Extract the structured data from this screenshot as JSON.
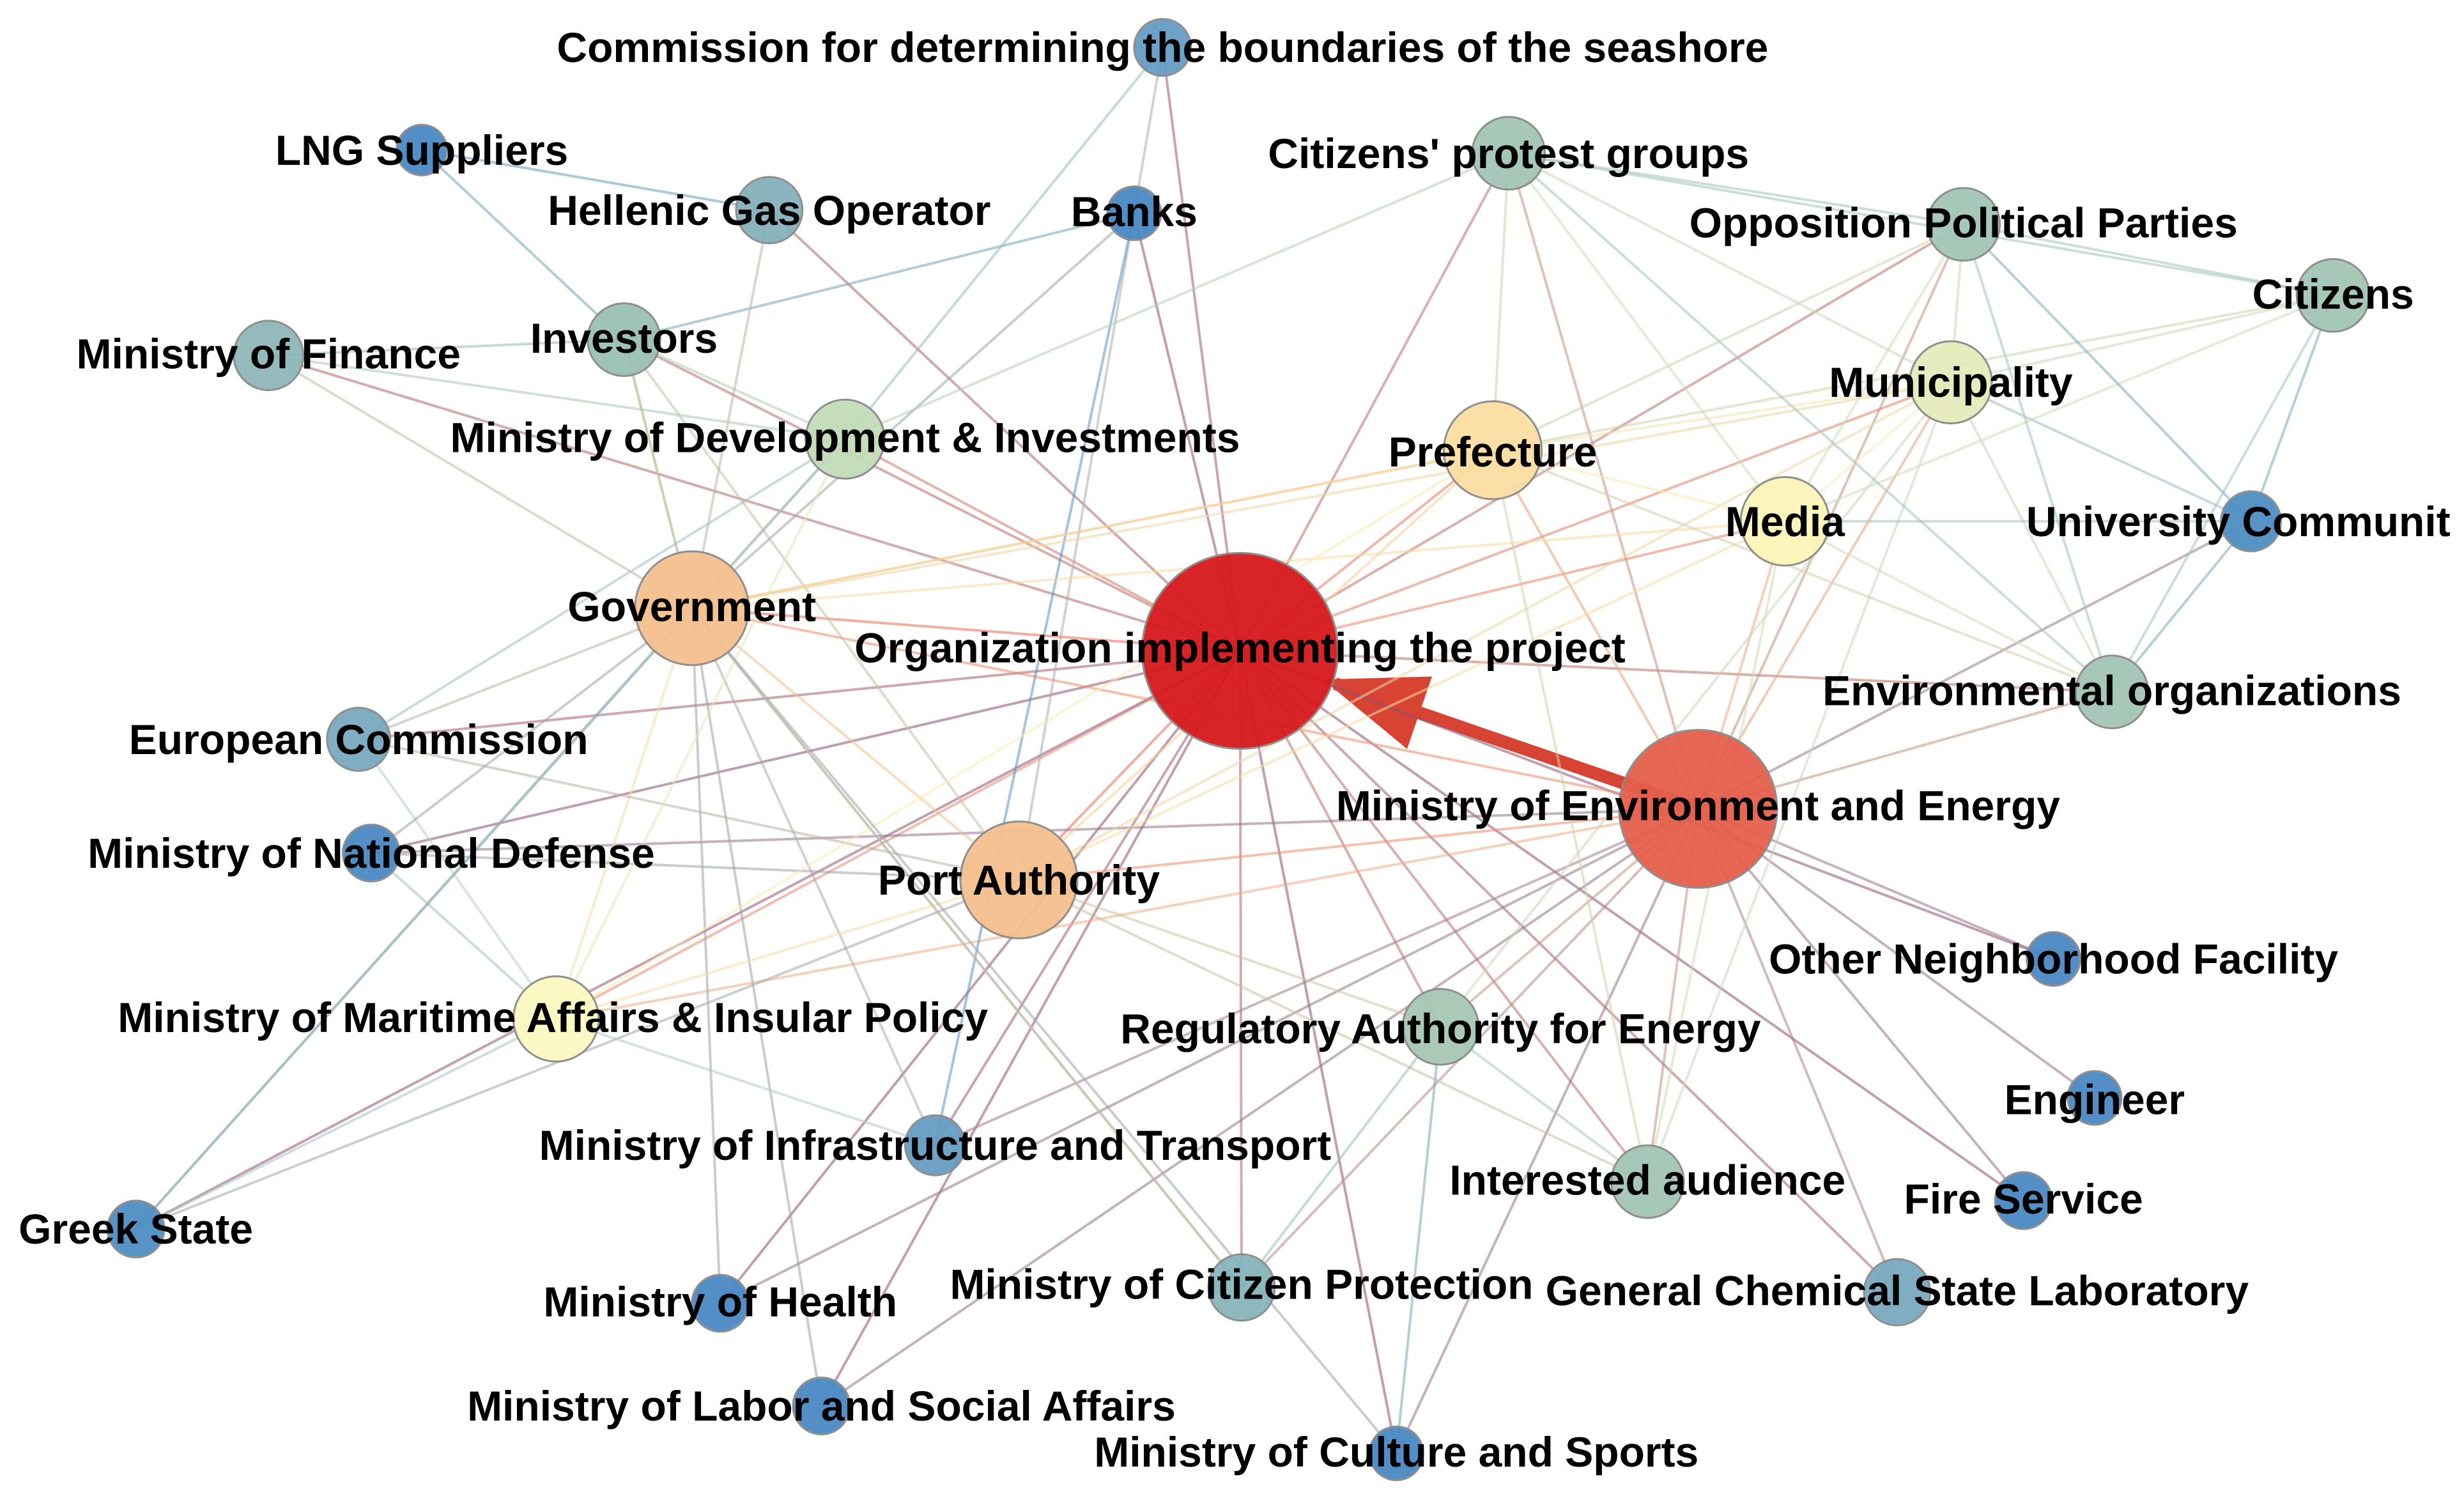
{
  "nodes": [
    {
      "id": "orgimpl",
      "label": "Organization implementing the project",
      "color": "#d7191c"
    },
    {
      "id": "minenv",
      "label": "Ministry of Environment and Energy",
      "color": "#e45f4b"
    },
    {
      "id": "govt",
      "label": "Government",
      "color": "#f5c08e"
    },
    {
      "id": "port",
      "label": "Port Authority",
      "color": "#f5c08e"
    },
    {
      "id": "prefect",
      "label": "Prefecture",
      "color": "#fbdea2"
    },
    {
      "id": "media",
      "label": "Media",
      "color": "#fbf5b8"
    },
    {
      "id": "muni",
      "label": "Municipality",
      "color": "#e6ebbb"
    },
    {
      "id": "marit",
      "label": "Ministry of Maritime Affairs & Insular Policy",
      "color": "#fbf8c0"
    },
    {
      "id": "mindev",
      "label": "Ministry of Development & Investments",
      "color": "#c2dcb8"
    },
    {
      "id": "rae",
      "label": "Regulatory Authority for Energy",
      "color": "#a6c8b4"
    },
    {
      "id": "protest",
      "label": "Citizens' protest groups",
      "color": "#a3c6b6"
    },
    {
      "id": "opposition",
      "label": "Opposition Political Parties",
      "color": "#a3c6b6"
    },
    {
      "id": "citizens",
      "label": "Citizens",
      "color": "#a3c6b6"
    },
    {
      "id": "envorg",
      "label": "Environmental organizations",
      "color": "#a3c6b6"
    },
    {
      "id": "interested",
      "label": "Interested audience",
      "color": "#a3c6b6"
    },
    {
      "id": "investors",
      "label": "Investors",
      "color": "#9bc0b4"
    },
    {
      "id": "minfin",
      "label": "Ministry of Finance",
      "color": "#8fb7b8"
    },
    {
      "id": "hgo",
      "label": "Hellenic Gas Operator",
      "color": "#86b0bb"
    },
    {
      "id": "eucomm",
      "label": "European Commission",
      "color": "#7aa9bf"
    },
    {
      "id": "mincit",
      "label": "Ministry of Citizen Protection",
      "color": "#86b5bb"
    },
    {
      "id": "gcsl",
      "label": "General Chemical State Laboratory",
      "color": "#7aa9bf"
    },
    {
      "id": "seashore",
      "label": "Commission for determining the boundaries of the seashore",
      "color": "#669cc3"
    },
    {
      "id": "lng",
      "label": "LNG Suppliers",
      "color": "#4a8ac4"
    },
    {
      "id": "banks",
      "label": "Banks",
      "color": "#4a8ac4"
    },
    {
      "id": "univ",
      "label": "University Communit",
      "color": "#4f8fc4"
    },
    {
      "id": "mindef",
      "label": "Ministry of National Defense",
      "color": "#4a8ac4"
    },
    {
      "id": "mininfra",
      "label": "Ministry of Infrastructure and Transport",
      "color": "#669cc3"
    },
    {
      "id": "greek",
      "label": "Greek State",
      "color": "#4f8fc4"
    },
    {
      "id": "minhealth",
      "label": "Ministry of Health",
      "color": "#4a8ac4"
    },
    {
      "id": "minlabor",
      "label": "Ministry of Labor and Social Affairs",
      "color": "#4a8ac4"
    },
    {
      "id": "minculture",
      "label": "Ministry of Culture and Sports",
      "color": "#4a8ac4"
    },
    {
      "id": "otherfac",
      "label": "Other Neighborhood Facility",
      "color": "#4a8ac4"
    },
    {
      "id": "engineer",
      "label": "Engineer",
      "color": "#4a8ac4"
    },
    {
      "id": "fire",
      "label": "Fire Service",
      "color": "#4a8ac4"
    }
  ],
  "edges": [
    {
      "from": "minenv",
      "to": "orgimpl",
      "weight": 5,
      "directed": true
    },
    [
      "orgimpl",
      "seashore"
    ],
    [
      "orgimpl",
      "hgo"
    ],
    [
      "orgimpl",
      "banks"
    ],
    [
      "orgimpl",
      "investors"
    ],
    [
      "orgimpl",
      "minfin"
    ],
    [
      "orgimpl",
      "mindev"
    ],
    [
      "orgimpl",
      "govt"
    ],
    [
      "orgimpl",
      "eucomm"
    ],
    [
      "orgimpl",
      "mindef"
    ],
    [
      "orgimpl",
      "marit"
    ],
    [
      "orgimpl",
      "port"
    ],
    [
      "orgimpl",
      "greek"
    ],
    [
      "orgimpl",
      "mininfra"
    ],
    [
      "orgimpl",
      "minhealth"
    ],
    [
      "orgimpl",
      "minlabor"
    ],
    [
      "orgimpl",
      "mincit"
    ],
    [
      "orgimpl",
      "minculture"
    ],
    [
      "orgimpl",
      "rae"
    ],
    [
      "orgimpl",
      "interested"
    ],
    [
      "orgimpl",
      "prefect"
    ],
    [
      "orgimpl",
      "muni"
    ],
    [
      "orgimpl",
      "media"
    ],
    [
      "orgimpl",
      "opposition"
    ],
    [
      "orgimpl",
      "protest"
    ],
    [
      "orgimpl",
      "envorg"
    ],
    [
      "orgimpl",
      "gcsl"
    ],
    [
      "orgimpl",
      "fire"
    ],
    [
      "orgimpl",
      "otherfac"
    ],
    [
      "minenv",
      "govt"
    ],
    [
      "minenv",
      "port"
    ],
    [
      "minenv",
      "prefect"
    ],
    [
      "minenv",
      "media"
    ],
    [
      "minenv",
      "muni"
    ],
    [
      "minenv",
      "envorg"
    ],
    [
      "minenv",
      "protest"
    ],
    [
      "minenv",
      "rae"
    ],
    [
      "minenv",
      "interested"
    ],
    [
      "minenv",
      "gcsl"
    ],
    [
      "minenv",
      "fire"
    ],
    [
      "minenv",
      "engineer"
    ],
    [
      "minenv",
      "otherfac"
    ],
    [
      "minenv",
      "minculture"
    ],
    [
      "minenv",
      "mincit"
    ],
    [
      "minenv",
      "minlabor"
    ],
    [
      "minenv",
      "minhealth"
    ],
    [
      "minenv",
      "mininfra"
    ],
    [
      "minenv",
      "marit"
    ],
    [
      "minenv",
      "mindef"
    ],
    [
      "minenv",
      "univ"
    ],
    [
      "minenv",
      "opposition"
    ],
    [
      "lng",
      "hgo"
    ],
    [
      "lng",
      "investors"
    ],
    [
      "investors",
      "banks"
    ],
    [
      "investors",
      "minfin"
    ],
    [
      "investors",
      "mindev"
    ],
    [
      "investors",
      "govt"
    ],
    [
      "investors",
      "port"
    ],
    [
      "hgo",
      "govt"
    ],
    [
      "seashore",
      "mindev"
    ],
    [
      "seashore",
      "port"
    ],
    [
      "banks",
      "govt"
    ],
    [
      "banks",
      "mininfra"
    ],
    [
      "govt",
      "prefect"
    ],
    [
      "govt",
      "muni"
    ],
    [
      "govt",
      "mindev"
    ],
    [
      "govt",
      "eucomm"
    ],
    [
      "govt",
      "marit"
    ],
    [
      "govt",
      "port"
    ],
    [
      "govt",
      "mininfra"
    ],
    [
      "govt",
      "minhealth"
    ],
    [
      "govt",
      "minlabor"
    ],
    [
      "govt",
      "mincit"
    ],
    [
      "govt",
      "media"
    ],
    [
      "govt",
      "greek"
    ],
    [
      "govt",
      "investors"
    ],
    [
      "port",
      "marit"
    ],
    [
      "port",
      "prefect"
    ],
    [
      "port",
      "muni"
    ],
    [
      "port",
      "media"
    ],
    [
      "port",
      "greek"
    ],
    [
      "port",
      "rae"
    ],
    [
      "port",
      "interested"
    ],
    [
      "port",
      "mindef"
    ],
    [
      "port",
      "eucomm"
    ],
    [
      "prefect",
      "muni"
    ],
    [
      "prefect",
      "media"
    ],
    [
      "prefect",
      "opposition"
    ],
    [
      "prefect",
      "protest"
    ],
    [
      "prefect",
      "citizens"
    ],
    [
      "prefect",
      "envorg"
    ],
    [
      "prefect",
      "interested"
    ],
    [
      "prefect",
      "marit"
    ],
    [
      "prefect",
      "govt"
    ],
    [
      "muni",
      "media"
    ],
    [
      "muni",
      "opposition"
    ],
    [
      "muni",
      "protest"
    ],
    [
      "muni",
      "citizens"
    ],
    [
      "muni",
      "envorg"
    ],
    [
      "muni",
      "univ"
    ],
    [
      "muni",
      "interested"
    ],
    [
      "muni",
      "rae"
    ],
    [
      "media",
      "opposition"
    ],
    [
      "media",
      "citizens"
    ],
    [
      "media",
      "envorg"
    ],
    [
      "media",
      "univ"
    ],
    [
      "media",
      "protest"
    ],
    [
      "media",
      "interested"
    ],
    [
      "opposition",
      "citizens"
    ],
    [
      "opposition",
      "univ"
    ],
    [
      "opposition",
      "envorg"
    ],
    [
      "opposition",
      "protest"
    ],
    [
      "citizens",
      "univ"
    ],
    [
      "citizens",
      "envorg"
    ],
    [
      "protest",
      "envorg"
    ],
    [
      "protest",
      "citizens"
    ],
    [
      "univ",
      "envorg"
    ],
    [
      "protest",
      "mindev"
    ],
    [
      "marit",
      "greek"
    ],
    [
      "marit",
      "mindef"
    ],
    [
      "marit",
      "eucomm"
    ],
    [
      "marit",
      "mininfra"
    ],
    [
      "rae",
      "interested"
    ],
    [
      "rae",
      "mincit"
    ],
    [
      "rae",
      "minculture"
    ],
    [
      "mindev",
      "minfin"
    ],
    [
      "mindev",
      "marit"
    ],
    [
      "eucomm",
      "mindev"
    ],
    [
      "mincit",
      "govt"
    ],
    [
      "minculture",
      "govt"
    ],
    [
      "minfin",
      "govt"
    ],
    [
      "mindef",
      "govt"
    ],
    [
      "greek",
      "mindev"
    ]
  ]
}
